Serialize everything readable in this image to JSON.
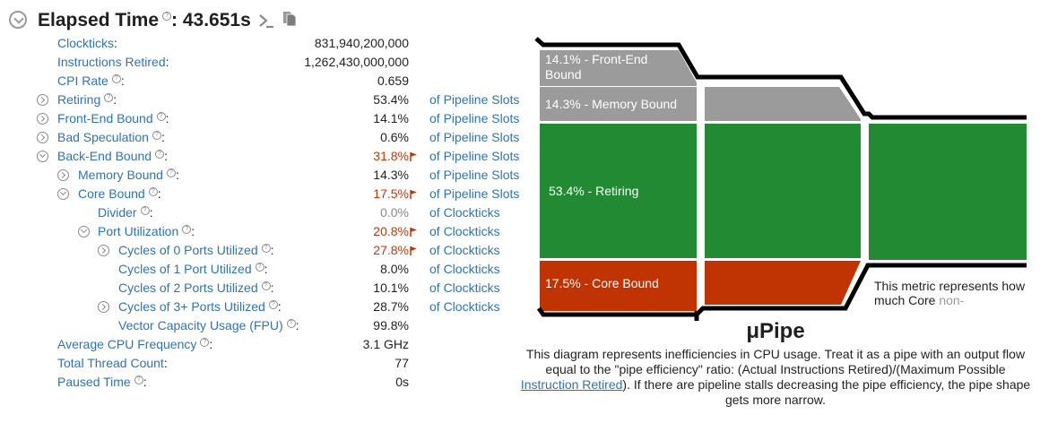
{
  "header": {
    "title": "Elapsed Time",
    "value": ": 43.651s",
    "help_mark": "?"
  },
  "metrics": [
    {
      "name": "Clockticks",
      "colon": ":",
      "value": "831,940,200,000",
      "unit": "",
      "help": false,
      "toggle": "none",
      "level": 0,
      "style": "normal"
    },
    {
      "name": "Instructions Retired",
      "colon": ":",
      "value": "1,262,430,000,000",
      "unit": "",
      "help": false,
      "toggle": "none",
      "level": 0,
      "style": "normal"
    },
    {
      "name": "CPI Rate",
      "colon": ":",
      "value": "0.659",
      "unit": "",
      "help": true,
      "toggle": "none",
      "level": 0,
      "style": "normal"
    },
    {
      "name": "Retiring",
      "colon": ":",
      "value": "53.4%",
      "unit": "of Pipeline Slots",
      "help": true,
      "toggle": "collapsed",
      "level": 0,
      "style": "normal"
    },
    {
      "name": "Front-End Bound",
      "colon": ":",
      "value": "14.1%",
      "unit": "of Pipeline Slots",
      "help": true,
      "toggle": "collapsed",
      "level": 0,
      "style": "normal"
    },
    {
      "name": "Bad Speculation",
      "colon": ":",
      "value": "0.6%",
      "unit": "of Pipeline Slots",
      "help": true,
      "toggle": "collapsed",
      "level": 0,
      "style": "normal"
    },
    {
      "name": "Back-End Bound",
      "colon": ":",
      "value": "31.8%",
      "unit": "of Pipeline Slots",
      "help": true,
      "toggle": "expanded",
      "level": 0,
      "style": "flag"
    },
    {
      "name": "Memory Bound",
      "colon": ":",
      "value": "14.3%",
      "unit": "of Pipeline Slots",
      "help": true,
      "toggle": "collapsed",
      "level": 1,
      "style": "normal"
    },
    {
      "name": "Core Bound",
      "colon": ":",
      "value": "17.5%",
      "unit": "of Pipeline Slots",
      "help": true,
      "toggle": "expanded",
      "level": 1,
      "style": "flag"
    },
    {
      "name": "Divider",
      "colon": ":",
      "value": "0.0%",
      "unit": "of Clockticks",
      "help": true,
      "toggle": "none",
      "level": 2,
      "style": "muted"
    },
    {
      "name": "Port Utilization",
      "colon": ":",
      "value": "20.8%",
      "unit": "of Clockticks",
      "help": true,
      "toggle": "expanded",
      "level": 2,
      "style": "flag"
    },
    {
      "name": "Cycles of 0 Ports Utilized",
      "colon": ":",
      "value": "27.8%",
      "unit": "of Clockticks",
      "help": true,
      "toggle": "collapsed",
      "level": 3,
      "style": "flag"
    },
    {
      "name": "Cycles of 1 Port Utilized",
      "colon": ":",
      "value": "8.0%",
      "unit": "of Clockticks",
      "help": true,
      "toggle": "none",
      "level": 3,
      "style": "normal"
    },
    {
      "name": "Cycles of 2 Ports Utilized",
      "colon": ":",
      "value": "10.1%",
      "unit": "of Clockticks",
      "help": true,
      "toggle": "none",
      "level": 3,
      "style": "normal"
    },
    {
      "name": "Cycles of 3+ Ports Utilized",
      "colon": ":",
      "value": "28.7%",
      "unit": "of Clockticks",
      "help": true,
      "toggle": "collapsed",
      "level": 3,
      "style": "normal"
    },
    {
      "name": "Vector Capacity Usage (FPU)",
      "colon": ":",
      "value": "99.8%",
      "unit": "",
      "help": true,
      "toggle": "none",
      "level": 3,
      "style": "normal"
    },
    {
      "name": "Average CPU Frequency",
      "colon": ":",
      "value": "3.1 GHz",
      "unit": "",
      "help": true,
      "toggle": "none",
      "level": 0,
      "style": "normal"
    },
    {
      "name": "Total Thread Count",
      "colon": ":",
      "value": "77",
      "unit": "",
      "help": false,
      "toggle": "none",
      "level": 0,
      "style": "normal"
    },
    {
      "name": "Paused Time",
      "colon": ":",
      "value": "0s",
      "unit": "",
      "help": true,
      "toggle": "none",
      "level": 0,
      "style": "normal"
    }
  ],
  "pipe": {
    "labels": {
      "front_end": [
        "14.1% - Front-End",
        "Bound"
      ],
      "memory": "14.3% - Memory Bound",
      "retiring": "53.4% - Retiring",
      "core": "17.5% - Core Bound"
    },
    "note_main": "This metric represents how much Core",
    "note_fade": "non-",
    "colors": {
      "gray": "#9b9b9b",
      "green": "#228a33",
      "red": "#c03303",
      "outline": "#000000"
    }
  },
  "upipe": {
    "title": "μPipe",
    "desc_before": "This diagram represents inefficiencies in CPU usage. Treat it as a pipe with an output flow equal to the \"pipe efficiency\" ratio: (Actual Instructions Retired)/(Maximum Possible ",
    "desc_link": "Instruction Retired",
    "desc_after": "). If there are pipeline stalls decreasing the pipe efficiency, the pipe shape gets more narrow."
  }
}
